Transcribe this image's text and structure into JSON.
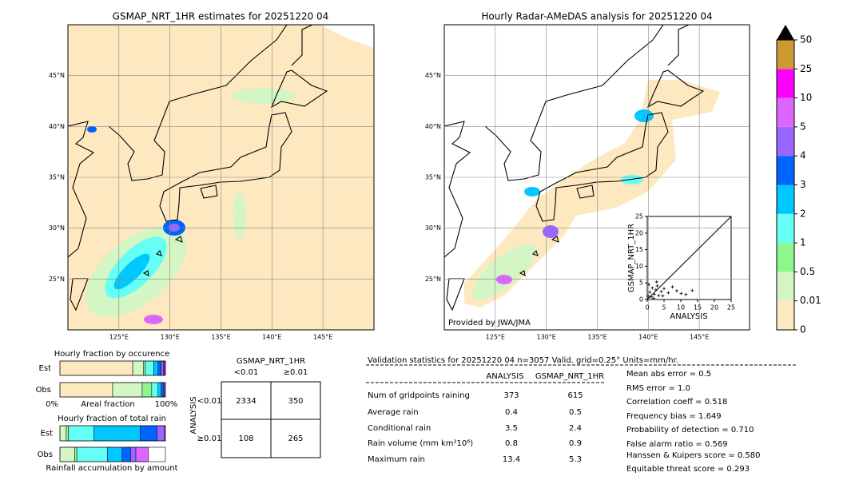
{
  "left_map": {
    "title": "GSMAP_NRT_1HR estimates for 20251220 04",
    "lonlim": [
      120,
      150
    ],
    "latlim": [
      20,
      50
    ],
    "lonticks": [
      {
        "value": 125,
        "label": "125°E"
      },
      {
        "value": 130,
        "label": "130°E"
      },
      {
        "value": 135,
        "label": "135°E"
      },
      {
        "value": 140,
        "label": "140°E"
      },
      {
        "value": 145,
        "label": "145°E"
      }
    ],
    "latticks": [
      {
        "value": 45,
        "label": "45°N"
      },
      {
        "value": 40,
        "label": "40°N"
      },
      {
        "value": 35,
        "label": "35°N"
      },
      {
        "value": 30,
        "label": "30°N"
      },
      {
        "value": 25,
        "label": "25°N"
      }
    ]
  },
  "right_map": {
    "title": "Hourly Radar-AMeDAS analysis for 20251220 04",
    "credit": "Provided by JWA/JMA",
    "lonlim": [
      120,
      150
    ],
    "latlim": [
      20,
      50
    ],
    "lonticks": [
      {
        "value": 125,
        "label": "125°E"
      },
      {
        "value": 130,
        "label": "130°E"
      },
      {
        "value": 135,
        "label": "135°E"
      },
      {
        "value": 140,
        "label": "140°E"
      },
      {
        "value": 145,
        "label": "145°E"
      }
    ],
    "latticks": [
      {
        "value": 45,
        "label": "45°N"
      },
      {
        "value": 40,
        "label": "40°N"
      },
      {
        "value": 35,
        "label": "35°N"
      },
      {
        "value": 30,
        "label": "30°N"
      },
      {
        "value": 25,
        "label": "25°N"
      }
    ]
  },
  "colorbar": {
    "levels": [
      0,
      0.01,
      0.5,
      1,
      2,
      3,
      4,
      5,
      10,
      25,
      50
    ],
    "colors": [
      "#fde8c0",
      "#d4f5c4",
      "#8cf78c",
      "#66fff5",
      "#00c8ff",
      "#0064ff",
      "#9966ff",
      "#dd66ff",
      "#ff00ff",
      "#cc9933"
    ],
    "extend_color": "#000000"
  },
  "scatter": {
    "xlabel": "ANALYSIS",
    "ylabel": "GSMAP_NRT_1HR",
    "xlim": [
      0,
      25
    ],
    "ylim": [
      0,
      25
    ],
    "xticks": [
      0,
      5,
      10,
      15,
      20,
      25
    ],
    "yticks": [
      0,
      5,
      10,
      15,
      20,
      25
    ],
    "x": [
      0.3,
      0.8,
      1.2,
      1.5,
      2.1,
      2.6,
      3.0,
      3.4,
      4.2,
      5.0,
      6.3,
      7.5,
      8.8,
      10.1,
      11.5,
      13.4,
      0.5,
      1.9,
      2.8,
      4.6
    ],
    "y": [
      1.0,
      2.2,
      0.8,
      3.5,
      1.6,
      2.9,
      4.1,
      1.2,
      2.4,
      3.3,
      2.0,
      3.8,
      2.6,
      1.8,
      1.5,
      2.7,
      4.5,
      0.4,
      5.3,
      1.1
    ]
  },
  "occurrence": {
    "title": "Hourly fraction by occurence",
    "xmin_label": "0%",
    "xlabel": "Areal fraction",
    "xmax_label": "100%",
    "rows": [
      {
        "label": "Est",
        "values": [
          69,
          10,
          2,
          8,
          4,
          3,
          2,
          1,
          1,
          0
        ]
      },
      {
        "label": "Obs",
        "values": [
          50,
          28,
          9,
          6,
          3,
          2,
          1,
          1,
          0,
          0
        ]
      }
    ]
  },
  "total_rain": {
    "title": "Hourly fraction of total rain",
    "xlabel": "Rainfall accumulation by amount",
    "rows": [
      {
        "label": "Est",
        "values": [
          0,
          6,
          2,
          24,
          44,
          16,
          7,
          1,
          0,
          0
        ]
      },
      {
        "label": "Obs",
        "values": [
          0,
          14,
          2,
          29,
          14,
          8,
          5,
          12,
          0,
          0
        ]
      }
    ]
  },
  "contingency": {
    "title": "GSMAP_NRT_1HR",
    "col_labels": [
      "<0.01",
      "≥0.01"
    ],
    "row_title": "ANALYSIS",
    "row_labels": [
      "<0.01",
      "≥0.01"
    ],
    "cells": [
      [
        2334,
        350
      ],
      [
        108,
        265
      ]
    ]
  },
  "validation": {
    "header": "Validation statistics for 20251220 04  n=3057 Valid. grid=0.25° Units=mm/hr.",
    "columns": [
      "ANALYSIS",
      "GSMAP_NRT_1HR"
    ],
    "rows": [
      {
        "label": "Num of gridpoints raining",
        "values": [
          373,
          615
        ]
      },
      {
        "label": "Average rain",
        "values": [
          0.4,
          0.5
        ]
      },
      {
        "label": "Conditional rain",
        "values": [
          3.5,
          2.4
        ]
      },
      {
        "label": "Rain volume (mm km²10⁶)",
        "values": [
          0.8,
          0.9
        ]
      },
      {
        "label": "Maximum rain",
        "values": [
          13.4,
          5.3
        ]
      }
    ],
    "scores": [
      "Mean abs error =    0.5",
      "RMS error =    1.0",
      "Correlation coeff =  0.518",
      "Frequency bias =  1.649",
      "Probability of detection =  0.710",
      "False alarm ratio =  0.569",
      "Hanssen & Kuipers score =  0.580",
      "Equitable threat score =  0.293"
    ]
  }
}
